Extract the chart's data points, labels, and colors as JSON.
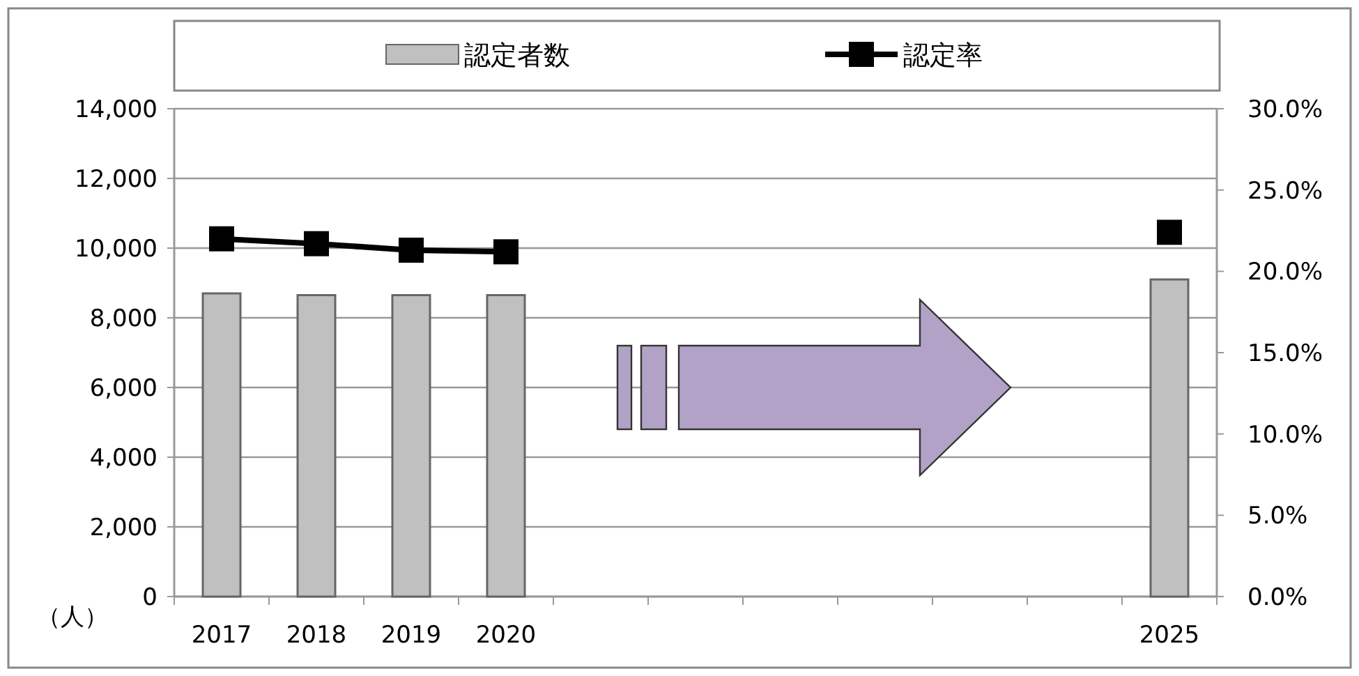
{
  "chart_data": {
    "type": "bar",
    "ylabel": "（人）",
    "categories": [
      "2017",
      "2018",
      "2019",
      "2020",
      null,
      null,
      null,
      null,
      null,
      null,
      "2025"
    ],
    "series": [
      {
        "name": "認定者数",
        "color": "#c0c0c0",
        "values": [
          8700,
          8650,
          8650,
          8650,
          null,
          null,
          null,
          null,
          null,
          null,
          9100
        ]
      },
      {
        "name": "認定率",
        "type": "line",
        "axis": "y2",
        "color": "#000000",
        "marker": "square",
        "values": [
          22.0,
          21.7,
          21.3,
          21.2,
          null,
          null,
          null,
          null,
          null,
          null,
          22.4
        ]
      }
    ],
    "ylim": [
      0,
      14000
    ],
    "yticks": [
      {
        "value": 0,
        "label": "0"
      },
      {
        "value": 2000,
        "label": "2,000"
      },
      {
        "value": 4000,
        "label": "4,000"
      },
      {
        "value": 6000,
        "label": "6,000"
      },
      {
        "value": 8000,
        "label": "8,000"
      },
      {
        "value": 10000,
        "label": "10,000"
      },
      {
        "value": 12000,
        "label": "12,000"
      },
      {
        "value": 14000,
        "label": "14,000"
      }
    ],
    "y2lim": [
      0,
      30
    ],
    "y2ticks": [
      {
        "value": 0,
        "label": "0.0%"
      },
      {
        "value": 5,
        "label": "5.0%"
      },
      {
        "value": 10,
        "label": "10.0%"
      },
      {
        "value": 15,
        "label": "15.0%"
      },
      {
        "value": 20,
        "label": "20.0%"
      },
      {
        "value": 25,
        "label": "25.0%"
      },
      {
        "value": 30,
        "label": "30.0%"
      }
    ],
    "grid": "y",
    "legend": "top"
  }
}
